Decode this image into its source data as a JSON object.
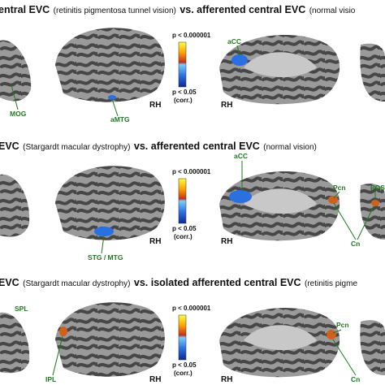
{
  "panels": [
    {
      "title": [
        "entral EVC",
        "(retinitis pigmentosa tunnel vision)",
        "vs. afferented central EVC",
        "(normal visio"
      ],
      "labels": [
        "MOG",
        "aMTG",
        "aCC"
      ],
      "hemispheres": [
        "RH",
        "RH"
      ]
    },
    {
      "title": [
        "EVC",
        "(Stargardt macular dystrophy)",
        "vs. afferented central EVC",
        "(normal vision)"
      ],
      "labels": [
        "aCC",
        "Pcn",
        "POS",
        "STG / MTG",
        "Cn"
      ],
      "hemispheres": [
        "RH",
        "RH"
      ]
    },
    {
      "title": [
        "EVC",
        "(Stargardt macular dystrophy)",
        "vs. isolated afferented central EVC",
        "(retinitis pigme"
      ],
      "labels": [
        "SPL",
        "Pcn",
        "IPL",
        "Cn"
      ],
      "hemispheres": [
        "RH",
        "RH"
      ]
    }
  ],
  "colorbar": {
    "top": "p < 0.000001",
    "bottom": "p < 0.05",
    "note": "(corr.)"
  }
}
